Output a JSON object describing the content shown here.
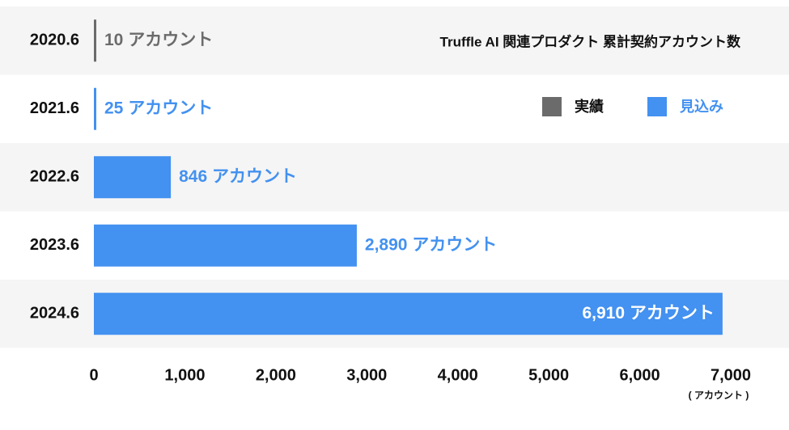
{
  "chart_data": {
    "type": "bar",
    "orientation": "horizontal",
    "title": "Truffle AI 関連プロダクト 累計契約アカウント数",
    "categories": [
      "2020.6",
      "2021.6",
      "2022.6",
      "2023.6",
      "2024.6"
    ],
    "values": [
      10,
      25,
      846,
      2890,
      6910
    ],
    "value_labels": [
      "10 アカウント",
      "25 アカウント",
      "846 アカウント",
      "2,890 アカウント",
      "6,910 アカウント"
    ],
    "colors": [
      "#6b6b6b",
      "#4391f0",
      "#4391f0",
      "#4391f0",
      "#4391f0"
    ],
    "legend": [
      {
        "name": "実績",
        "color": "#6b6b6b"
      },
      {
        "name": "見込み",
        "color": "#4391f0"
      }
    ],
    "xlabel": "( アカウント )",
    "xlim": [
      0,
      7000
    ],
    "xticks": [
      0,
      {
        "value": 1000,
        "label": "1,000"
      },
      {
        "value": 2000,
        "label": "2,000"
      },
      {
        "value": 3000,
        "label": "3,000"
      },
      {
        "value": 4000,
        "label": "4,000"
      },
      {
        "value": 5000,
        "label": "5,000"
      },
      {
        "value": 6000,
        "label": "6,000"
      },
      {
        "value": 7000,
        "label": "7,000"
      }
    ]
  }
}
